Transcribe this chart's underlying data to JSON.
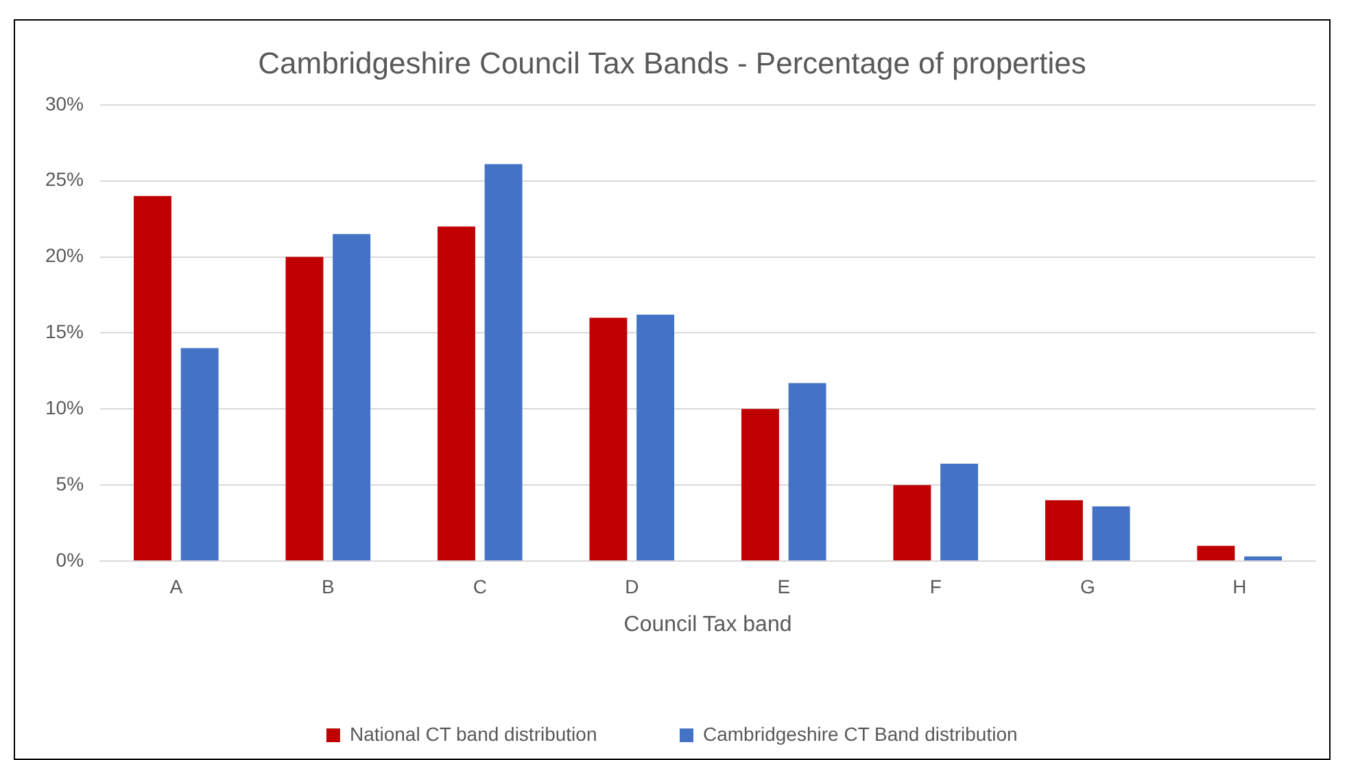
{
  "chart_data": {
    "type": "bar",
    "title": "Cambridgeshire Council Tax Bands - Percentage of properties",
    "xlabel": "Council Tax band",
    "categories": [
      "A",
      "B",
      "C",
      "D",
      "E",
      "F",
      "G",
      "H"
    ],
    "series": [
      {
        "name": "National CT band distribution",
        "color": "#c00000",
        "values": [
          24,
          20,
          22,
          16,
          10,
          5,
          4,
          1
        ]
      },
      {
        "name": "Cambridgeshire CT Band distribution",
        "color": "#4472c4",
        "values": [
          14,
          21.5,
          26.1,
          16.2,
          11.7,
          6.4,
          3.6,
          0.3
        ]
      }
    ],
    "ylim": [
      0,
      30
    ],
    "yticks": [
      {
        "value": 0,
        "label": "0%"
      },
      {
        "value": 5,
        "label": "5%"
      },
      {
        "value": 10,
        "label": "10%"
      },
      {
        "value": 15,
        "label": "15%"
      },
      {
        "value": 20,
        "label": "20%"
      },
      {
        "value": 25,
        "label": "25%"
      },
      {
        "value": 30,
        "label": "30%"
      }
    ],
    "grid": "y",
    "legend": "bottom"
  }
}
